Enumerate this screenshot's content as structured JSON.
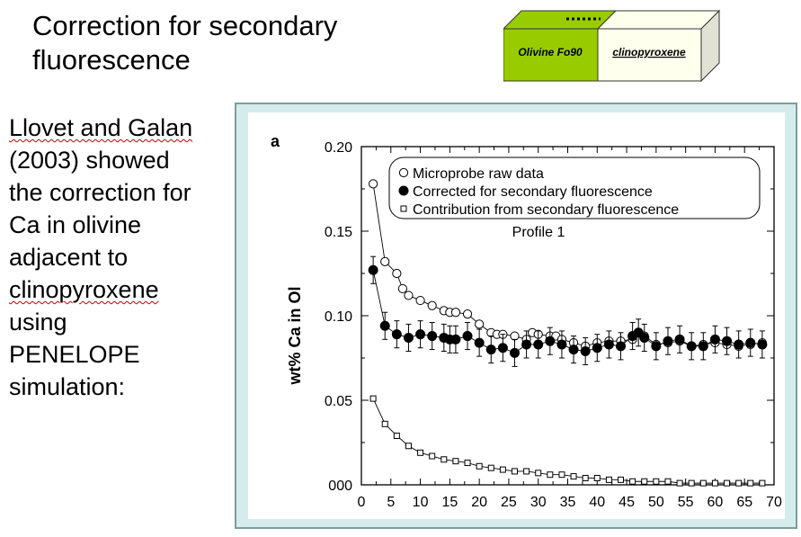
{
  "slide": {
    "title": "Correction for secondary fluorescence",
    "body_lines": [
      {
        "text": "Llovet and Galan",
        "squiggle": true
      },
      {
        "text": "(2003) showed",
        "squiggle": false
      },
      {
        "text": "the correction for",
        "squiggle": false
      },
      {
        "text": "Ca in olivine",
        "squiggle": false
      },
      {
        "text": "adjacent to",
        "squiggle": false
      },
      {
        "text": "clinopyroxene",
        "squiggle": true
      },
      {
        "text": "using",
        "squiggle": false
      },
      {
        "text": "PENELOPE",
        "squiggle": false
      },
      {
        "text": "simulation:",
        "squiggle": false
      }
    ]
  },
  "diagram": {
    "olivine_label": "Olivine Fo90",
    "cpx_label": "clinopyroxene",
    "olivine_color": "#99cc00",
    "cpx_color": "#ffffee"
  },
  "chart_data": {
    "type": "scatter",
    "panel_label": "a",
    "annotation": "Profile 1",
    "ylabel": "wt% Ca in Ol",
    "xlabel": "",
    "xlim": [
      0,
      70
    ],
    "ylim": [
      0,
      0.2
    ],
    "xticks": [
      0,
      5,
      10,
      15,
      20,
      25,
      30,
      35,
      40,
      45,
      50,
      55,
      60,
      65,
      70
    ],
    "ytick_labels": [
      {
        "value": 0.0,
        "label": "000"
      },
      {
        "value": 0.05,
        "label": "0.05"
      },
      {
        "value": 0.1,
        "label": "0.10"
      },
      {
        "value": 0.15,
        "label": "0.15"
      },
      {
        "value": 0.2,
        "label": "0.20"
      }
    ],
    "legend_position": "top-right",
    "series": [
      {
        "name": "Microprobe raw data",
        "marker": "open-circle",
        "connected": true,
        "x": [
          2,
          4,
          6,
          7,
          8,
          10,
          12,
          14,
          15,
          16,
          18,
          20,
          22,
          23,
          24,
          26,
          28,
          29,
          30,
          32,
          33,
          34,
          36,
          38,
          40,
          42,
          44,
          46,
          47,
          48,
          50,
          52,
          54,
          56,
          58,
          60,
          62,
          64,
          66,
          68
        ],
        "y": [
          0.178,
          0.132,
          0.125,
          0.116,
          0.112,
          0.109,
          0.106,
          0.103,
          0.102,
          0.102,
          0.101,
          0.095,
          0.09,
          0.089,
          0.089,
          0.088,
          0.086,
          0.09,
          0.089,
          0.088,
          0.088,
          0.086,
          0.084,
          0.082,
          0.084,
          0.085,
          0.085,
          0.086,
          0.09,
          0.088,
          0.083,
          0.084,
          0.085,
          0.082,
          0.083,
          0.084,
          0.083,
          0.082,
          0.083,
          0.084
        ]
      },
      {
        "name": "Corrected for secondary fluorescence",
        "marker": "filled-circle",
        "connected": true,
        "error_bar": 0.008,
        "x": [
          2,
          4,
          6,
          8,
          10,
          12,
          14,
          15,
          16,
          18,
          20,
          22,
          24,
          26,
          28,
          30,
          32,
          34,
          36,
          38,
          40,
          42,
          44,
          46,
          47,
          48,
          50,
          52,
          54,
          56,
          58,
          60,
          62,
          64,
          66,
          68
        ],
        "y": [
          0.127,
          0.094,
          0.089,
          0.087,
          0.089,
          0.088,
          0.087,
          0.086,
          0.086,
          0.088,
          0.084,
          0.08,
          0.081,
          0.078,
          0.083,
          0.083,
          0.085,
          0.083,
          0.08,
          0.079,
          0.081,
          0.083,
          0.082,
          0.088,
          0.09,
          0.087,
          0.082,
          0.085,
          0.086,
          0.082,
          0.082,
          0.086,
          0.085,
          0.083,
          0.084,
          0.083
        ]
      },
      {
        "name": "Contribution from secondary fluorescence",
        "marker": "open-square",
        "connected": true,
        "x": [
          2,
          4,
          6,
          8,
          10,
          12,
          14,
          16,
          18,
          20,
          22,
          24,
          26,
          28,
          30,
          32,
          34,
          36,
          38,
          40,
          42,
          44,
          46,
          48,
          50,
          52,
          54,
          56,
          58,
          60,
          62,
          64,
          66,
          68
        ],
        "y": [
          0.051,
          0.036,
          0.029,
          0.023,
          0.019,
          0.017,
          0.015,
          0.014,
          0.013,
          0.011,
          0.01,
          0.009,
          0.008,
          0.008,
          0.007,
          0.006,
          0.006,
          0.005,
          0.004,
          0.004,
          0.003,
          0.003,
          0.002,
          0.002,
          0.002,
          0.002,
          0.001,
          0.001,
          0.001,
          0.001,
          0.001,
          0.001,
          0.001,
          0.001
        ]
      }
    ]
  }
}
